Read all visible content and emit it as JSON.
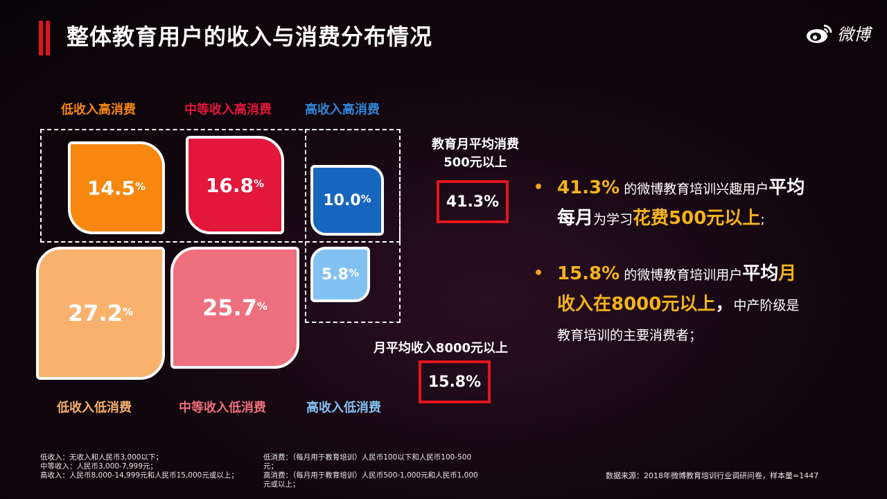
{
  "title": "整体教育用户的收入与消费分布情况",
  "logo": {
    "icon": "weibo-icon",
    "text": "微博"
  },
  "categories": {
    "low_high": "低收入高消费",
    "mid_high": "中等收入高消费",
    "high_high": "高收入高消费",
    "low_low": "低收入低消费",
    "mid_low": "中等收入低消费",
    "high_low": "高收入低消费"
  },
  "boxes": {
    "low_high": {
      "value": "14.5",
      "unit": "%"
    },
    "mid_high": {
      "value": "16.8",
      "unit": "%"
    },
    "high_high": {
      "value": "10.0",
      "unit": "%"
    },
    "low_low": {
      "value": "27.2",
      "unit": "%"
    },
    "mid_low": {
      "value": "25.7",
      "unit": "%"
    },
    "high_low": {
      "value": "5.8",
      "unit": "%"
    }
  },
  "colors": {
    "low_high": "#f7870f",
    "mid_high": "#e3163b",
    "high_high": "#1766be",
    "low_low": "#f9b26e",
    "mid_low": "#ee6f7d",
    "high_low": "#82c2f2",
    "accent": "#e3141e",
    "highlight": "#f5b31b"
  },
  "stat1": {
    "title_line1": "教育月平均消费",
    "title_line2": "500元以上",
    "value": "41.3%"
  },
  "stat2": {
    "title": "月平均收入8000元以上",
    "value": "15.8%"
  },
  "bullets": [
    {
      "p1": "41.3%",
      "p2": " 的微博教育培训兴趣用户",
      "p3": "平均",
      "p4": "每月",
      "p5": "为学习",
      "p6": "花费500元以上",
      "p7": ";"
    },
    {
      "p1": "15.8%",
      "p2": " 的微博教育培训用户",
      "p3": "平均",
      "p3b": "月",
      "p4": "收入在8000元以上",
      "p5": "，",
      "p6": "中产阶级是",
      "p7": "教育培训的主要消费者；"
    }
  ],
  "footnotes": {
    "income": [
      "低收入：无收入和人民币3,000以下；",
      "中等收入：人民币3,000-7,999元；",
      "高收入：人民币8,000-14,999元和人民币15,000元或以上；"
    ],
    "spend": [
      "低消费：（每月用于教育培训）人民币100以下和人民币100-500",
      "元；",
      "高消费：（每月用于教育培训）人民币500-1,000元和人民币1,000",
      "元或以上；"
    ],
    "source": "数据来源：2018年微博教育培训行业调研问卷，样本量=1447"
  }
}
